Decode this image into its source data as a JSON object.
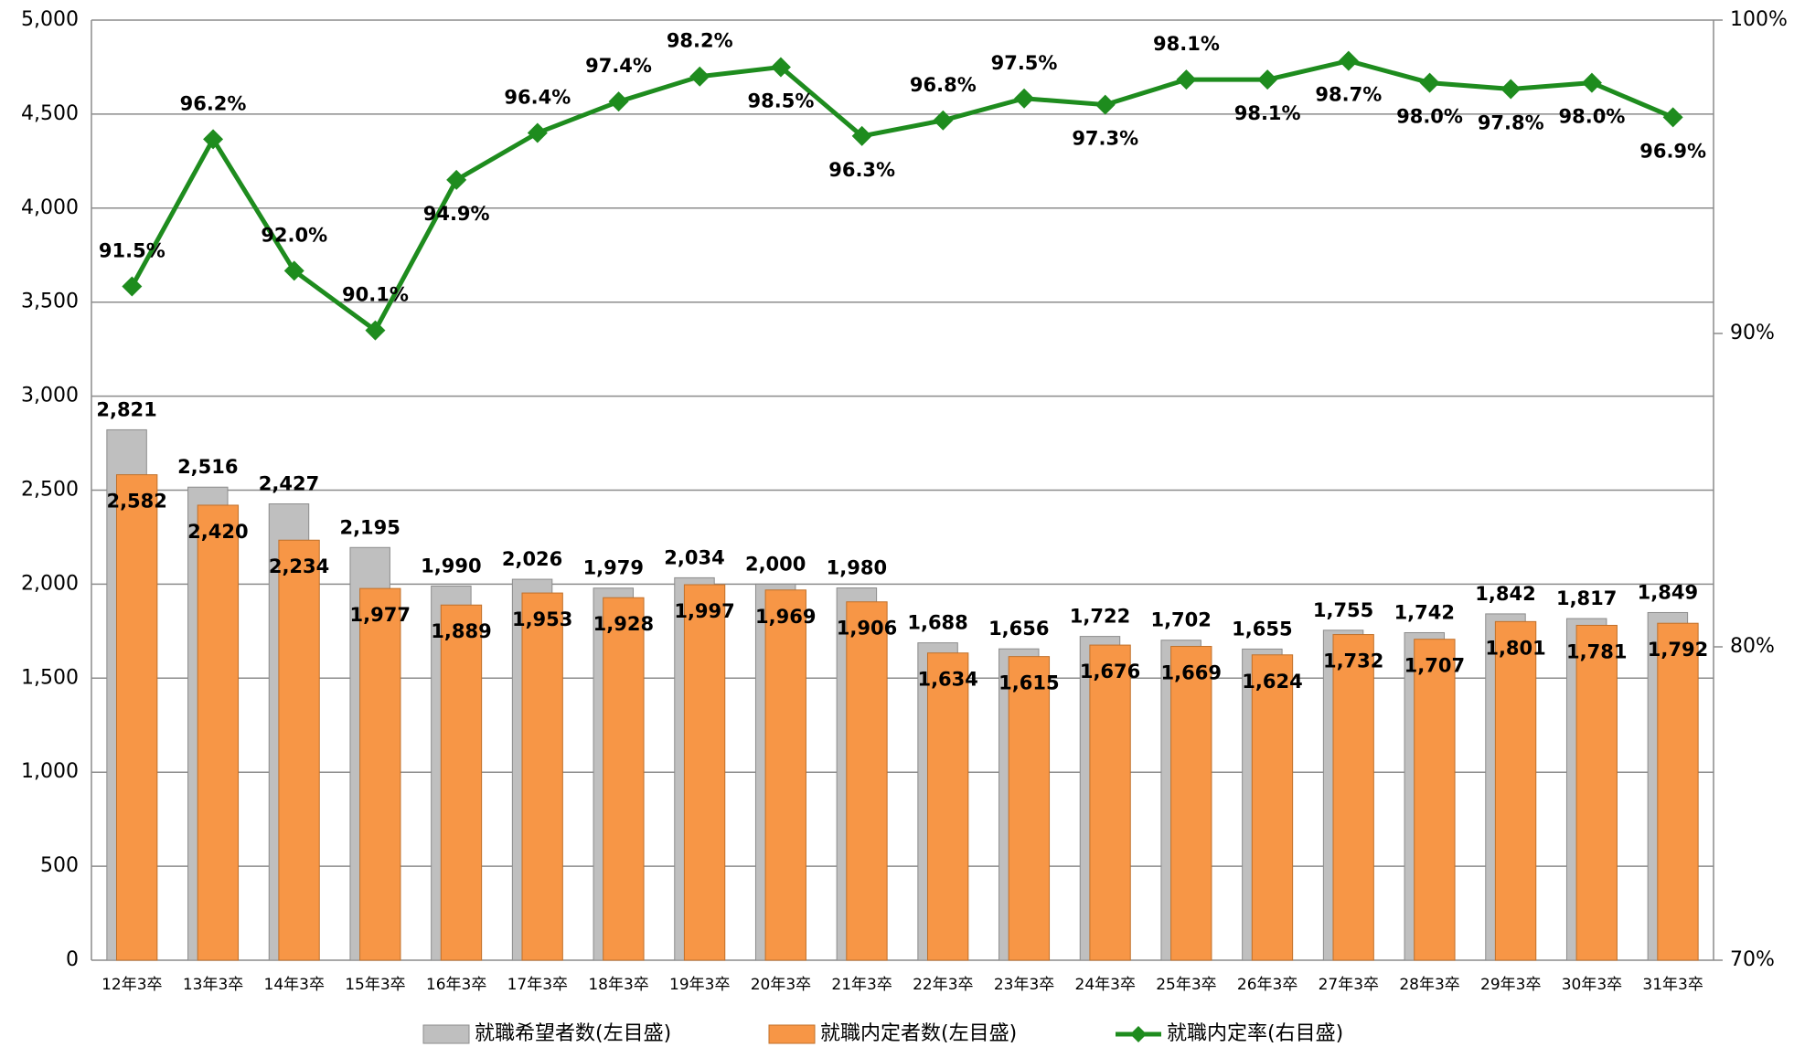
{
  "chart_data": {
    "type": "bar_line",
    "categories": [
      "12年3卒",
      "13年3卒",
      "14年3卒",
      "15年3卒",
      "16年3卒",
      "17年3卒",
      "18年3卒",
      "19年3卒",
      "20年3卒",
      "21年3卒",
      "22年3卒",
      "23年3卒",
      "24年3卒",
      "25年3卒",
      "26年3卒",
      "27年3卒",
      "28年3卒",
      "29年3卒",
      "30年3卒",
      "31年3卒"
    ],
    "series": [
      {
        "name": "就職希望者数(左目盛)",
        "type": "bar",
        "color": "#bfbfbf",
        "values": [
          2821,
          2516,
          2427,
          2195,
          1990,
          2026,
          1979,
          2034,
          2000,
          1980,
          1688,
          1656,
          1722,
          1702,
          1655,
          1755,
          1742,
          1842,
          1817,
          1849
        ],
        "value_labels": [
          "2,821",
          "2,516",
          "2,427",
          "2,195",
          "1,990",
          "2,026",
          "1,979",
          "2,034",
          "2,000",
          "1,980",
          "1,688",
          "1,656",
          "1,722",
          "1,702",
          "1,655",
          "1,755",
          "1,742",
          "1,842",
          "1,817",
          "1,849"
        ]
      },
      {
        "name": "就職内定者数(左目盛)",
        "type": "bar",
        "color": "#f79646",
        "values": [
          2582,
          2420,
          2234,
          1977,
          1889,
          1953,
          1928,
          1997,
          1969,
          1906,
          1634,
          1615,
          1676,
          1669,
          1624,
          1732,
          1707,
          1801,
          1781,
          1792
        ],
        "value_labels": [
          "2,582",
          "2,420",
          "2,234",
          "1,977",
          "1,889",
          "1,953",
          "1,928",
          "1,997",
          "1,969",
          "1,906",
          "1,634",
          "1,615",
          "1,676",
          "1,669",
          "1,624",
          "1,732",
          "1,707",
          "1,801",
          "1,781",
          "1,792"
        ]
      },
      {
        "name": "就職内定率(右目盛)",
        "type": "line",
        "axis": "y2",
        "color": "#1e8c1e",
        "values": [
          91.5,
          96.2,
          92.0,
          90.1,
          94.9,
          96.4,
          97.4,
          98.2,
          98.5,
          96.3,
          96.8,
          97.5,
          97.3,
          98.1,
          98.1,
          98.7,
          98.0,
          97.8,
          98.0,
          96.9
        ],
        "value_labels": [
          "91.5%",
          "96.2%",
          "92.0%",
          "90.1%",
          "94.9%",
          "96.4%",
          "97.4%",
          "98.2%",
          "98.5%",
          "96.3%",
          "96.8%",
          "97.5%",
          "97.3%",
          "98.1%",
          "98.1%",
          "98.7%",
          "98.0%",
          "97.8%",
          "98.0%",
          "96.9%"
        ]
      }
    ],
    "ylim": [
      0,
      5000
    ],
    "yticks": [
      0,
      500,
      {
        "value": 1000,
        "label": "1,000"
      },
      {
        "value": 1500,
        "label": "1,500"
      },
      {
        "value": 2000,
        "label": "2,000"
      },
      {
        "value": 2500,
        "label": "2,500"
      },
      {
        "value": 3000,
        "label": "3,000"
      },
      {
        "value": 3500,
        "label": "3,500"
      },
      {
        "value": 4000,
        "label": "4,000"
      },
      {
        "value": 4500,
        "label": "4,500"
      },
      {
        "value": 5000,
        "label": "5,000"
      }
    ],
    "y2lim": [
      70,
      100
    ],
    "y2ticks": [
      {
        "value": 70,
        "label": "70%"
      },
      {
        "value": 80,
        "label": "80%"
      },
      {
        "value": 90,
        "label": "90%"
      },
      {
        "value": 100,
        "label": "100%"
      }
    ],
    "grid": true,
    "legend": "bottom"
  }
}
